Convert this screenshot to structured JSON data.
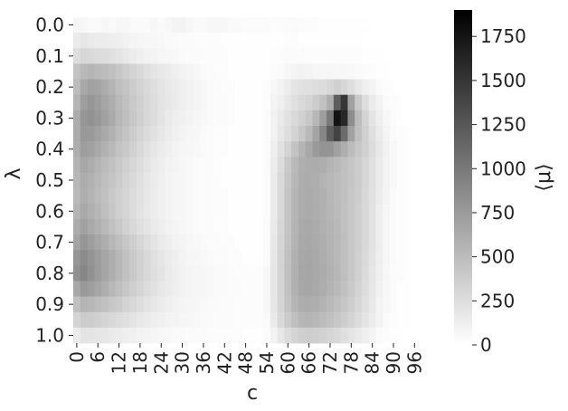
{
  "chart_data": {
    "type": "heatmap",
    "title": "",
    "xlabel": "c",
    "ylabel": "λ",
    "colorbar_label": "⟨μ⟩",
    "colormap": "gray_r (white = 0, black = max)",
    "color_low": "#ffffff",
    "color_high": "#000000",
    "value_range": [
      0,
      1900
    ],
    "x_tick_labels": [
      "0",
      "6",
      "12",
      "18",
      "24",
      "30",
      "36",
      "42",
      "48",
      "54",
      "60",
      "66",
      "72",
      "78",
      "84",
      "90",
      "96"
    ],
    "y_tick_labels": [
      "0.0",
      "0.1",
      "0.2",
      "0.3",
      "0.4",
      "0.5",
      "0.6",
      "0.7",
      "0.8",
      "0.9",
      "1.0"
    ],
    "colorbar_ticks": [
      "0",
      "250",
      "500",
      "750",
      "1000",
      "1250",
      "1500",
      "1750"
    ],
    "colorbar_tick_values": [
      0,
      250,
      500,
      750,
      1000,
      1250,
      1500,
      1750
    ],
    "x_values": [
      0,
      2,
      4,
      6,
      8,
      10,
      12,
      14,
      16,
      18,
      20,
      22,
      24,
      26,
      28,
      30,
      32,
      34,
      36,
      38,
      40,
      42,
      44,
      46,
      48,
      50,
      52,
      54,
      56,
      58,
      60,
      62,
      64,
      66,
      68,
      70,
      72,
      74,
      76,
      78,
      80,
      82,
      84,
      86,
      88,
      90,
      92,
      94,
      96,
      98
    ],
    "y_values": [
      0.0,
      0.05,
      0.1,
      0.15,
      0.2,
      0.25,
      0.3,
      0.35,
      0.4,
      0.45,
      0.5,
      0.55,
      0.6,
      0.65,
      0.7,
      0.75,
      0.8,
      0.85,
      0.9,
      0.95,
      1.0
    ],
    "values": [
      [
        60,
        60,
        40,
        40,
        60,
        40,
        60,
        60,
        40,
        40,
        40,
        60,
        40,
        60,
        80,
        90,
        60,
        40,
        40,
        60,
        60,
        60,
        40,
        40,
        30,
        30,
        30,
        30,
        20,
        20,
        30,
        40,
        30,
        20,
        20,
        10,
        10,
        10,
        10,
        10,
        10,
        10,
        0,
        0,
        0,
        0,
        0,
        0,
        0,
        0
      ],
      [
        150,
        180,
        160,
        140,
        140,
        130,
        120,
        100,
        80,
        70,
        60,
        60,
        50,
        40,
        40,
        30,
        30,
        20,
        20,
        20,
        20,
        10,
        10,
        10,
        10,
        10,
        10,
        10,
        10,
        10,
        20,
        20,
        10,
        10,
        10,
        10,
        10,
        10,
        10,
        10,
        10,
        0,
        0,
        0,
        0,
        0,
        0,
        0,
        0,
        0
      ],
      [
        250,
        300,
        280,
        260,
        250,
        230,
        200,
        170,
        140,
        120,
        100,
        80,
        70,
        60,
        50,
        40,
        30,
        30,
        20,
        20,
        20,
        20,
        10,
        10,
        10,
        10,
        10,
        10,
        20,
        20,
        30,
        30,
        30,
        20,
        20,
        20,
        20,
        20,
        20,
        20,
        20,
        10,
        10,
        10,
        0,
        0,
        0,
        0,
        0,
        0
      ],
      [
        450,
        520,
        550,
        520,
        500,
        470,
        420,
        370,
        320,
        280,
        240,
        200,
        170,
        150,
        120,
        100,
        80,
        60,
        40,
        30,
        20,
        20,
        10,
        10,
        10,
        10,
        10,
        10,
        30,
        40,
        60,
        80,
        90,
        80,
        70,
        70,
        70,
        60,
        60,
        50,
        40,
        30,
        20,
        10,
        10,
        0,
        0,
        0,
        0,
        0
      ],
      [
        500,
        650,
        700,
        680,
        620,
        560,
        480,
        430,
        380,
        330,
        280,
        240,
        200,
        170,
        150,
        120,
        100,
        80,
        60,
        40,
        30,
        20,
        20,
        10,
        10,
        10,
        10,
        20,
        60,
        100,
        150,
        200,
        220,
        230,
        250,
        260,
        300,
        350,
        300,
        240,
        180,
        120,
        80,
        40,
        20,
        10,
        0,
        0,
        0,
        0
      ],
      [
        550,
        720,
        780,
        720,
        660,
        600,
        520,
        460,
        400,
        350,
        300,
        250,
        210,
        180,
        150,
        120,
        100,
        80,
        60,
        40,
        30,
        30,
        20,
        10,
        10,
        10,
        10,
        20,
        80,
        120,
        180,
        230,
        280,
        320,
        380,
        460,
        600,
        1200,
        1500,
        700,
        400,
        250,
        150,
        90,
        40,
        20,
        10,
        0,
        0,
        0
      ],
      [
        620,
        780,
        820,
        760,
        700,
        630,
        540,
        480,
        420,
        360,
        300,
        250,
        200,
        160,
        130,
        110,
        90,
        70,
        50,
        40,
        30,
        30,
        20,
        10,
        10,
        10,
        10,
        30,
        100,
        160,
        220,
        280,
        340,
        420,
        540,
        720,
        1000,
        1750,
        1600,
        850,
        500,
        320,
        200,
        120,
        60,
        30,
        10,
        0,
        0,
        0
      ],
      [
        620,
        760,
        760,
        700,
        640,
        580,
        500,
        440,
        380,
        320,
        270,
        220,
        180,
        140,
        110,
        90,
        70,
        60,
        40,
        30,
        20,
        20,
        10,
        10,
        10,
        10,
        10,
        30,
        100,
        180,
        250,
        330,
        420,
        520,
        680,
        900,
        1200,
        1400,
        1100,
        700,
        480,
        350,
        240,
        150,
        80,
        40,
        20,
        10,
        0,
        0
      ],
      [
        600,
        720,
        700,
        640,
        580,
        520,
        450,
        400,
        340,
        280,
        230,
        190,
        150,
        120,
        90,
        70,
        60,
        50,
        40,
        30,
        20,
        20,
        10,
        10,
        10,
        10,
        10,
        30,
        120,
        220,
        330,
        450,
        550,
        650,
        750,
        800,
        800,
        700,
        600,
        500,
        420,
        350,
        260,
        170,
        100,
        50,
        20,
        10,
        0,
        0
      ],
      [
        560,
        660,
        620,
        560,
        510,
        460,
        400,
        350,
        300,
        250,
        200,
        160,
        130,
        100,
        80,
        60,
        50,
        40,
        30,
        30,
        20,
        10,
        10,
        10,
        10,
        10,
        10,
        30,
        140,
        260,
        400,
        520,
        600,
        620,
        620,
        600,
        560,
        520,
        480,
        430,
        380,
        310,
        230,
        150,
        90,
        50,
        20,
        10,
        0,
        0
      ],
      [
        540,
        620,
        580,
        530,
        480,
        430,
        380,
        330,
        280,
        230,
        190,
        150,
        120,
        90,
        70,
        60,
        50,
        40,
        30,
        20,
        20,
        10,
        10,
        10,
        10,
        10,
        10,
        30,
        150,
        280,
        420,
        540,
        610,
        620,
        600,
        570,
        540,
        500,
        470,
        430,
        380,
        310,
        230,
        150,
        90,
        50,
        20,
        10,
        0,
        0
      ],
      [
        520,
        600,
        560,
        510,
        460,
        410,
        360,
        310,
        260,
        220,
        180,
        140,
        110,
        90,
        70,
        60,
        50,
        40,
        30,
        20,
        20,
        20,
        10,
        10,
        10,
        10,
        10,
        30,
        150,
        290,
        430,
        550,
        620,
        630,
        610,
        580,
        540,
        500,
        460,
        420,
        370,
        300,
        220,
        140,
        80,
        40,
        20,
        10,
        0,
        0
      ],
      [
        560,
        640,
        590,
        540,
        480,
        420,
        360,
        310,
        260,
        210,
        170,
        140,
        110,
        90,
        70,
        60,
        50,
        40,
        30,
        20,
        20,
        20,
        10,
        10,
        10,
        10,
        10,
        30,
        150,
        290,
        430,
        550,
        620,
        630,
        610,
        580,
        550,
        510,
        470,
        420,
        360,
        290,
        210,
        130,
        70,
        40,
        20,
        10,
        0,
        0
      ],
      [
        620,
        700,
        640,
        580,
        520,
        460,
        400,
        340,
        290,
        240,
        200,
        160,
        130,
        100,
        80,
        60,
        50,
        40,
        30,
        30,
        20,
        20,
        10,
        10,
        10,
        10,
        10,
        40,
        160,
        300,
        440,
        560,
        630,
        640,
        620,
        590,
        560,
        520,
        470,
        420,
        360,
        290,
        210,
        130,
        70,
        40,
        20,
        10,
        0,
        0
      ],
      [
        680,
        780,
        720,
        660,
        600,
        540,
        480,
        420,
        360,
        300,
        250,
        200,
        160,
        130,
        100,
        80,
        60,
        50,
        40,
        30,
        30,
        20,
        20,
        10,
        10,
        10,
        10,
        40,
        170,
        310,
        450,
        570,
        640,
        650,
        630,
        600,
        570,
        530,
        480,
        420,
        360,
        290,
        210,
        130,
        70,
        40,
        20,
        10,
        0,
        0
      ],
      [
        780,
        860,
        800,
        730,
        660,
        600,
        530,
        460,
        400,
        340,
        280,
        230,
        190,
        150,
        120,
        90,
        70,
        60,
        50,
        40,
        30,
        30,
        20,
        20,
        10,
        10,
        10,
        40,
        180,
        320,
        460,
        580,
        650,
        660,
        640,
        610,
        570,
        530,
        480,
        420,
        350,
        280,
        200,
        120,
        70,
        40,
        20,
        10,
        0,
        0
      ],
      [
        820,
        900,
        820,
        740,
        670,
        600,
        530,
        460,
        400,
        340,
        290,
        240,
        200,
        160,
        130,
        100,
        80,
        70,
        60,
        50,
        40,
        40,
        30,
        20,
        20,
        20,
        20,
        50,
        190,
        330,
        470,
        590,
        660,
        670,
        650,
        620,
        580,
        540,
        480,
        420,
        350,
        270,
        190,
        110,
        60,
        30,
        20,
        10,
        0,
        0
      ],
      [
        650,
        760,
        720,
        660,
        600,
        540,
        480,
        420,
        360,
        310,
        260,
        220,
        180,
        150,
        120,
        100,
        80,
        70,
        60,
        50,
        40,
        40,
        30,
        30,
        20,
        20,
        20,
        50,
        190,
        330,
        460,
        580,
        650,
        660,
        640,
        610,
        570,
        520,
        460,
        400,
        330,
        260,
        180,
        100,
        50,
        30,
        10,
        10,
        0,
        0
      ],
      [
        480,
        560,
        540,
        500,
        460,
        420,
        380,
        330,
        290,
        250,
        210,
        180,
        150,
        120,
        100,
        80,
        70,
        60,
        50,
        40,
        40,
        30,
        30,
        20,
        20,
        20,
        20,
        50,
        180,
        310,
        440,
        550,
        610,
        620,
        600,
        570,
        530,
        480,
        430,
        370,
        300,
        230,
        160,
        90,
        50,
        30,
        10,
        10,
        0,
        0
      ],
      [
        320,
        380,
        370,
        350,
        320,
        290,
        260,
        230,
        200,
        170,
        150,
        130,
        110,
        90,
        80,
        70,
        60,
        50,
        40,
        40,
        30,
        30,
        30,
        20,
        20,
        20,
        20,
        40,
        160,
        280,
        390,
        480,
        540,
        550,
        530,
        500,
        460,
        420,
        370,
        320,
        260,
        200,
        140,
        80,
        40,
        20,
        10,
        10,
        0,
        0
      ],
      [
        150,
        200,
        200,
        190,
        180,
        160,
        140,
        120,
        110,
        90,
        80,
        70,
        60,
        50,
        40,
        40,
        30,
        30,
        30,
        20,
        20,
        20,
        20,
        20,
        10,
        10,
        10,
        30,
        100,
        180,
        260,
        320,
        360,
        370,
        360,
        340,
        310,
        280,
        240,
        200,
        160,
        120,
        80,
        40,
        20,
        10,
        10,
        0,
        0,
        0
      ]
    ]
  }
}
